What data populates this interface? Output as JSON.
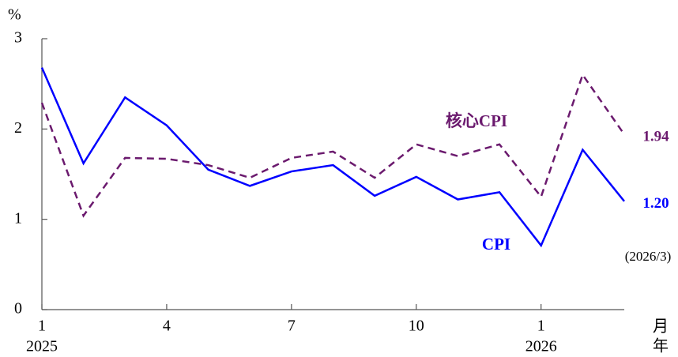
{
  "chart_data": {
    "type": "line",
    "y_unit": "%",
    "categories": [
      "1",
      null,
      null,
      "4",
      null,
      null,
      "7",
      null,
      null,
      "10",
      null,
      null,
      "1",
      null,
      null
    ],
    "year_labels": [
      "2025",
      null,
      null,
      null,
      null,
      null,
      null,
      null,
      null,
      null,
      null,
      null,
      "2026",
      null,
      null
    ],
    "x_unit_labels": [
      "月",
      "年"
    ],
    "series": [
      {
        "name": "CPI",
        "color": "#0000ff",
        "dash": false,
        "values": [
          2.68,
          1.62,
          2.35,
          2.04,
          1.55,
          1.37,
          1.53,
          1.6,
          1.26,
          1.47,
          1.22,
          1.3,
          0.71,
          1.77,
          1.2
        ],
        "value_labels": [
          null,
          null,
          null,
          null,
          null,
          null,
          null,
          null,
          null,
          null,
          null,
          null,
          null,
          null,
          "1.20"
        ]
      },
      {
        "name": "核心CPI",
        "color": "#6b1a6e",
        "dash": true,
        "values": [
          2.29,
          1.04,
          1.68,
          1.67,
          1.6,
          1.46,
          1.68,
          1.75,
          1.46,
          1.83,
          1.7,
          1.83,
          1.25,
          2.6,
          1.94
        ],
        "value_labels": [
          null,
          null,
          null,
          null,
          null,
          null,
          null,
          null,
          null,
          null,
          null,
          null,
          null,
          null,
          "1.94"
        ]
      }
    ],
    "annotations": [
      "(2026/3)"
    ],
    "ylim": [
      0,
      3
    ],
    "yticks": [
      0,
      1,
      2,
      3
    ],
    "grid": false
  }
}
